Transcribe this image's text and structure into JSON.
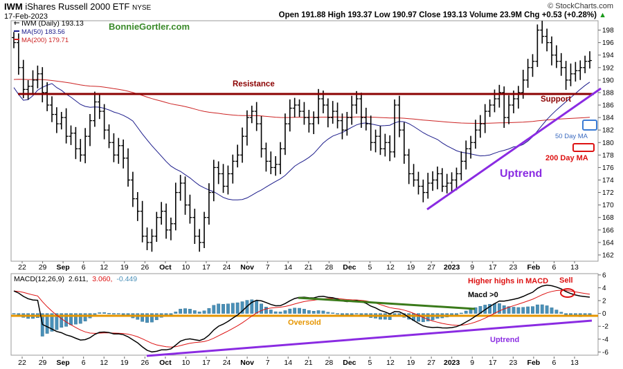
{
  "header": {
    "symbol": "IWM",
    "name": "iShares Russell 2000 ETF",
    "exchange": "NYSE",
    "date": "17-Feb-2023",
    "copyright": "© StockCharts.com",
    "quote": "Open 191.88  High 193.37  Low 190.97  Close 193.13  Volume 23.9M  Chg +0.53 (+0.28%)",
    "up_arrow": "▲"
  },
  "legend": {
    "price": "IWM (Daily) 193.13",
    "ma50": "MA(50) 183.56",
    "ma200": "MA(200) 179.71",
    "watermark": "BonnieGortler.com",
    "macd_name": "MACD(12,26,9)",
    "macd_values": [
      "2.611,",
      "3.060,",
      "-0.449"
    ]
  },
  "annotations": {
    "resistance": "Resistance",
    "support": "Support",
    "ma50_label": "50 Day MA",
    "ma200_label": "200 Day MA",
    "uptrend_price": "Uptrend",
    "higher_highs": "Higher highs in MACD",
    "sell": "Sell",
    "macd_gt0": "Macd >0",
    "oversold": "Oversold",
    "uptrend_macd": "Uptrend"
  },
  "colors": {
    "price_bars": "#000000",
    "ma50": "#1a1a8a",
    "ma200": "#cc2222",
    "resistance_line": "#8b0000",
    "trendline": "#8a2be2",
    "histogram": "#4a90b8",
    "signal": "#dd1111",
    "oversold_line": "#e69500",
    "negative_divergence": "#3a7a1a",
    "box_blue": "#3a7bd5",
    "box_red": "#dd1111"
  },
  "chart_data": [
    {
      "type": "ohlc",
      "title": "IWM (Daily) 193.13",
      "x_tick_labels": [
        "22",
        "29",
        "Sep",
        "6",
        "12",
        "19",
        "26",
        "Oct",
        "10",
        "17",
        "24",
        "Nov",
        "7",
        "14",
        "21",
        "28",
        "Dec",
        "5",
        "12",
        "19",
        "27",
        "2023",
        "9",
        "17",
        "23",
        "Feb",
        "6",
        "13"
      ],
      "ylim": [
        161,
        199.5
      ],
      "y_ticks": [
        162,
        164,
        166,
        168,
        170,
        172,
        174,
        176,
        178,
        180,
        182,
        184,
        186,
        188,
        190,
        192,
        194,
        196,
        198
      ],
      "resistance_support_level": 188.2,
      "closes": [
        196,
        192,
        188.5,
        189,
        190,
        191,
        188,
        186,
        184.5,
        183,
        184,
        181,
        181.5,
        179,
        178,
        181,
        183.5,
        186.5,
        185,
        182,
        180,
        178,
        179.5,
        177.5,
        174,
        171,
        169,
        165,
        164,
        165,
        168,
        169,
        166,
        167,
        172,
        173.5,
        170,
        168,
        165,
        164,
        168,
        172,
        176,
        175,
        173,
        175,
        177,
        178,
        181,
        184,
        185,
        183,
        179,
        177,
        176,
        176.5,
        179,
        183,
        185.5,
        186,
        185,
        184,
        183,
        184,
        187,
        186,
        184,
        185,
        183.5,
        182,
        184,
        186,
        187,
        184,
        183,
        180,
        181,
        179,
        180,
        178.5,
        186,
        182,
        178,
        175,
        174,
        173,
        172,
        173.5,
        174,
        175,
        173,
        173.5,
        174,
        175,
        177,
        179,
        180,
        182,
        183,
        185,
        186,
        187,
        188,
        184,
        186,
        187,
        188,
        190,
        192,
        193,
        198,
        197,
        196,
        194,
        193,
        192,
        190,
        191,
        191.5,
        192,
        193,
        193.13
      ],
      "series": [
        {
          "name": "MA(50) 183.56"
        },
        {
          "name": "MA(200) 179.71"
        }
      ]
    },
    {
      "type": "macd",
      "title": "MACD(12,26,9) 2.611, 3.060, -0.449",
      "ylim": [
        -6.5,
        6.2
      ],
      "y_ticks": [
        -6,
        -4,
        -2,
        0,
        2,
        4,
        6
      ],
      "x_tick_labels": [
        "22",
        "29",
        "Sep",
        "6",
        "12",
        "19",
        "26",
        "Oct",
        "10",
        "17",
        "24",
        "Nov",
        "7",
        "14",
        "21",
        "28",
        "Dec",
        "5",
        "12",
        "19",
        "27",
        "2023",
        "9",
        "17",
        "23",
        "Feb",
        "6",
        "13"
      ]
    }
  ]
}
